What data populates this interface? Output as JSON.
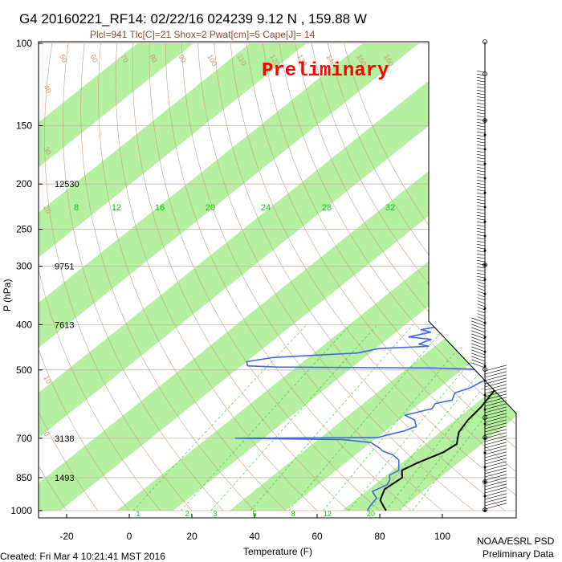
{
  "header": {
    "title": "G4 20160221_RF14: 02/22/16 024239   9.12 N , 159.88 W",
    "subtitle": "Plcl=941 Tlc[C]=21 Shox=2 Pwat[cm]=5 Cape[J]= 14",
    "watermark": "Preliminary"
  },
  "footer": {
    "created": "Created: Fri Mar  4 10:21:41 MST 2016",
    "org": "NOAA/ESRL PSD",
    "status": "Preliminary Data"
  },
  "height_labels": [
    {
      "p": 200,
      "text": "12530"
    },
    {
      "p": 300,
      "text": "9751"
    },
    {
      "p": 400,
      "text": "7613"
    },
    {
      "p": 700,
      "text": "3138"
    },
    {
      "p": 850,
      "text": "1493"
    }
  ],
  "mixing_ratio_labels_upper": [
    "8",
    "12",
    "16",
    "20",
    "24",
    "28",
    "32"
  ],
  "mixing_ratio_labels_lower": [
    "1",
    "2",
    "3",
    "5",
    "8",
    "12",
    "20"
  ],
  "isotherm_labels": [
    "-30",
    "-20",
    "-10",
    "0",
    "10",
    "20",
    "30"
  ],
  "adiabat_labels": [
    "50",
    "60",
    "70",
    "80",
    "90",
    "100",
    "110",
    "120",
    "130",
    "140",
    "150",
    "160"
  ],
  "left_adiabat_labels": [
    "40",
    "30",
    "20",
    "10",
    "0"
  ],
  "colors": {
    "band": "#b4f0a0",
    "temperature": "#000000",
    "dewpoint": "#4169e1",
    "parcel": "#d21e1e",
    "adiabat": "#c8a082",
    "mixing": "#22cc22",
    "grid": "#c8b4aa"
  },
  "chart_data": {
    "type": "line",
    "title": "G4 20160221_RF14: 02/22/16 024239   9.12 N , 159.88 W",
    "xlabel": "Temperature (F)",
    "ylabel": "P (hPa)",
    "x_ticks": [
      -20,
      0,
      20,
      40,
      60,
      80,
      100
    ],
    "y_ticks": [
      100,
      150,
      200,
      250,
      300,
      400,
      500,
      700,
      850,
      1000
    ],
    "xlim": [
      -28,
      100
    ],
    "ylim": [
      1000,
      100
    ],
    "y_scale": "log",
    "grid": true,
    "series": [
      {
        "name": "temperature",
        "unit": "F",
        "points": [
          [
            82,
            1000
          ],
          [
            79,
            975
          ],
          [
            76,
            950
          ],
          [
            73,
            900
          ],
          [
            74,
            850
          ],
          [
            71,
            820
          ],
          [
            73,
            790
          ],
          [
            75,
            770
          ],
          [
            77,
            750
          ],
          [
            78,
            720
          ],
          [
            76,
            700
          ],
          [
            74,
            680
          ],
          [
            72,
            640
          ],
          [
            71,
            600
          ],
          [
            69,
            560
          ],
          [
            68,
            540
          ],
          [
            67,
            520
          ],
          [
            66,
            500
          ],
          [
            67,
            480
          ],
          [
            64,
            460
          ],
          [
            65,
            440
          ],
          [
            62,
            420
          ],
          [
            60,
            400
          ],
          [
            59,
            380
          ],
          [
            57,
            350
          ],
          [
            54,
            320
          ],
          [
            51,
            300
          ],
          [
            47,
            270
          ],
          [
            43,
            250
          ],
          [
            40,
            230
          ],
          [
            38,
            210
          ],
          [
            35,
            200
          ],
          [
            33,
            190
          ],
          [
            30,
            175
          ],
          [
            28,
            165
          ]
        ]
      },
      {
        "name": "dewpoint",
        "unit": "F",
        "points": [
          [
            76,
            1000
          ],
          [
            75,
            975
          ],
          [
            74,
            940
          ],
          [
            70,
            910
          ],
          [
            72,
            880
          ],
          [
            71,
            860
          ],
          [
            69,
            840
          ],
          [
            70,
            820
          ],
          [
            68,
            800
          ],
          [
            66,
            780
          ],
          [
            62,
            760
          ],
          [
            57,
            745
          ],
          [
            55,
            735
          ],
          [
            50,
            715
          ],
          [
            40,
            705
          ],
          [
            20,
            702
          ],
          [
            5,
            700
          ],
          [
            50,
            698
          ],
          [
            52,
            690
          ],
          [
            56,
            675
          ],
          [
            58,
            660
          ],
          [
            55,
            640
          ],
          [
            50,
            625
          ],
          [
            56,
            605
          ],
          [
            55,
            590
          ],
          [
            59,
            580
          ],
          [
            57,
            560
          ],
          [
            60,
            545
          ],
          [
            61,
            530
          ],
          [
            64,
            510
          ],
          [
            62,
            500
          ],
          [
            40,
            495
          ],
          [
            -10,
            493
          ],
          [
            -20,
            490
          ],
          [
            -22,
            480
          ],
          [
            -15,
            470
          ],
          [
            10,
            460
          ],
          [
            15,
            450
          ],
          [
            30,
            445
          ],
          [
            26,
            440
          ],
          [
            28,
            430
          ],
          [
            20,
            425
          ],
          [
            25,
            415
          ],
          [
            21,
            410
          ],
          [
            28,
            400
          ],
          [
            35,
            395
          ],
          [
            40,
            385
          ],
          [
            42,
            375
          ],
          [
            43,
            360
          ],
          [
            45,
            350
          ],
          [
            44,
            340
          ],
          [
            43,
            320
          ],
          [
            42,
            300
          ],
          [
            38,
            285
          ],
          [
            34,
            275
          ],
          [
            30,
            265
          ],
          [
            25,
            258
          ],
          [
            20,
            250
          ],
          [
            20,
            240
          ],
          [
            12,
            230
          ],
          [
            10,
            220
          ],
          [
            16,
            213
          ],
          [
            18,
            207
          ],
          [
            14,
            202
          ],
          [
            8,
            197
          ],
          [
            6,
            193
          ]
        ]
      },
      {
        "name": "parcel",
        "unit": "F",
        "points": [
          [
            68,
            520
          ],
          [
            69,
            540
          ],
          [
            70,
            560
          ]
        ]
      }
    ],
    "wind_barbs": true,
    "watermark": "Preliminary"
  }
}
